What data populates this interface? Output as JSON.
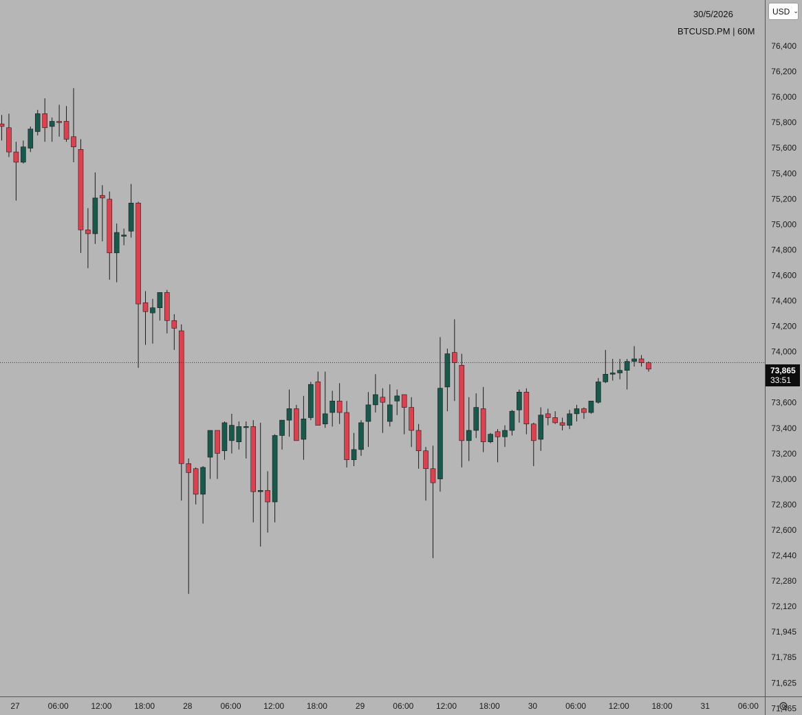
{
  "header": {
    "date": "30/5/2026",
    "symbol_line": "BTCUSD.PM | 60M"
  },
  "currency_select": {
    "value": "USD"
  },
  "price_badge": {
    "price": "73,865",
    "countdown": "33:51"
  },
  "colors": {
    "background": "#b6b6b6",
    "up": "#17594a",
    "down": "#e0404e",
    "wick": "#1a1a1a",
    "axis_line": "#555555"
  },
  "icons": {
    "settings": "gear-icon",
    "dropdown": "chevron-down-icon"
  },
  "chart_data": {
    "type": "candlestick",
    "interval": "60M",
    "x_tick_labels": [
      "27",
      "06:00",
      "12:00",
      "18:00",
      "28",
      "06:00",
      "12:00",
      "18:00",
      "29",
      "06:00",
      "12:00",
      "18:00",
      "30",
      "06:00",
      "12:00",
      "18:00",
      "31",
      "06:00"
    ],
    "y_tick_labels": [
      "76,400",
      "76,200",
      "76,000",
      "75,800",
      "75,600",
      "75,400",
      "75,200",
      "75,000",
      "74,800",
      "74,600",
      "74,400",
      "74,200",
      "74,000",
      "73,800",
      "73,600",
      "73,400",
      "73,200",
      "73,000",
      "72,800",
      "72,600",
      "72,440",
      "72,280",
      "72,120",
      "71,945",
      "71,785",
      "71,625",
      "71,465"
    ],
    "last_price": 73865,
    "candles": [
      {
        "o": 75780,
        "h": 75850,
        "l": 75650,
        "c": 75760
      },
      {
        "o": 75750,
        "h": 75860,
        "l": 75520,
        "c": 75560
      },
      {
        "o": 75560,
        "h": 75640,
        "l": 75180,
        "c": 75480
      },
      {
        "o": 75480,
        "h": 75650,
        "l": 75470,
        "c": 75600
      },
      {
        "o": 75590,
        "h": 75760,
        "l": 75560,
        "c": 75740
      },
      {
        "o": 75720,
        "h": 75890,
        "l": 75690,
        "c": 75860
      },
      {
        "o": 75860,
        "h": 75980,
        "l": 75640,
        "c": 75750
      },
      {
        "o": 75760,
        "h": 75830,
        "l": 75640,
        "c": 75800
      },
      {
        "o": 75800,
        "h": 75930,
        "l": 75680,
        "c": 75790
      },
      {
        "o": 75800,
        "h": 75920,
        "l": 75640,
        "c": 75660
      },
      {
        "o": 75680,
        "h": 76060,
        "l": 75480,
        "c": 75600
      },
      {
        "o": 75580,
        "h": 75660,
        "l": 74770,
        "c": 74950
      },
      {
        "o": 74950,
        "h": 75120,
        "l": 74650,
        "c": 74920
      },
      {
        "o": 74920,
        "h": 75400,
        "l": 74840,
        "c": 75200
      },
      {
        "o": 75220,
        "h": 75300,
        "l": 74860,
        "c": 75200
      },
      {
        "o": 75190,
        "h": 75250,
        "l": 74560,
        "c": 74770
      },
      {
        "o": 74770,
        "h": 75000,
        "l": 74540,
        "c": 74930
      },
      {
        "o": 74900,
        "h": 74960,
        "l": 74830,
        "c": 74910
      },
      {
        "o": 74940,
        "h": 75310,
        "l": 74890,
        "c": 75160
      },
      {
        "o": 75160,
        "h": 75170,
        "l": 73870,
        "c": 74370
      },
      {
        "o": 74380,
        "h": 74470,
        "l": 74050,
        "c": 74310
      },
      {
        "o": 74300,
        "h": 74410,
        "l": 74060,
        "c": 74340
      },
      {
        "o": 74340,
        "h": 74460,
        "l": 74240,
        "c": 74460
      },
      {
        "o": 74460,
        "h": 74480,
        "l": 74140,
        "c": 74240
      },
      {
        "o": 74240,
        "h": 74290,
        "l": 74010,
        "c": 74180
      },
      {
        "o": 74160,
        "h": 74210,
        "l": 72830,
        "c": 73120
      },
      {
        "o": 73120,
        "h": 73160,
        "l": 72100,
        "c": 73050
      },
      {
        "o": 73080,
        "h": 73090,
        "l": 72800,
        "c": 72880
      },
      {
        "o": 72880,
        "h": 73100,
        "l": 72650,
        "c": 73090
      },
      {
        "o": 73170,
        "h": 73380,
        "l": 73000,
        "c": 73380
      },
      {
        "o": 73380,
        "h": 73380,
        "l": 73000,
        "c": 73200
      },
      {
        "o": 73220,
        "h": 73450,
        "l": 73150,
        "c": 73440
      },
      {
        "o": 73300,
        "h": 73510,
        "l": 73200,
        "c": 73420
      },
      {
        "o": 73290,
        "h": 73450,
        "l": 73230,
        "c": 73410
      },
      {
        "o": 73410,
        "h": 73450,
        "l": 73160,
        "c": 73410
      },
      {
        "o": 73410,
        "h": 73460,
        "l": 72660,
        "c": 72900
      },
      {
        "o": 72900,
        "h": 73440,
        "l": 72470,
        "c": 72910
      },
      {
        "o": 72910,
        "h": 73060,
        "l": 72580,
        "c": 72820
      },
      {
        "o": 72820,
        "h": 73350,
        "l": 72660,
        "c": 73340
      },
      {
        "o": 73340,
        "h": 73430,
        "l": 73230,
        "c": 73460
      },
      {
        "o": 73460,
        "h": 73700,
        "l": 73330,
        "c": 73550
      },
      {
        "o": 73550,
        "h": 73580,
        "l": 73300,
        "c": 73300
      },
      {
        "o": 73310,
        "h": 73650,
        "l": 73150,
        "c": 73470
      },
      {
        "o": 73480,
        "h": 73760,
        "l": 73460,
        "c": 73740
      },
      {
        "o": 73760,
        "h": 73840,
        "l": 73420,
        "c": 73420
      },
      {
        "o": 73430,
        "h": 73840,
        "l": 73400,
        "c": 73510
      },
      {
        "o": 73520,
        "h": 73690,
        "l": 73410,
        "c": 73610
      },
      {
        "o": 73610,
        "h": 73750,
        "l": 73430,
        "c": 73520
      },
      {
        "o": 73520,
        "h": 73610,
        "l": 73090,
        "c": 73150
      },
      {
        "o": 73150,
        "h": 73360,
        "l": 73100,
        "c": 73230
      },
      {
        "o": 73230,
        "h": 73460,
        "l": 73180,
        "c": 73440
      },
      {
        "o": 73450,
        "h": 73680,
        "l": 73250,
        "c": 73580
      },
      {
        "o": 73580,
        "h": 73820,
        "l": 73520,
        "c": 73660
      },
      {
        "o": 73640,
        "h": 73710,
        "l": 73360,
        "c": 73600
      },
      {
        "o": 73450,
        "h": 73740,
        "l": 73410,
        "c": 73580
      },
      {
        "o": 73610,
        "h": 73700,
        "l": 73500,
        "c": 73650
      },
      {
        "o": 73660,
        "h": 73650,
        "l": 73350,
        "c": 73560
      },
      {
        "o": 73560,
        "h": 73640,
        "l": 73250,
        "c": 73380
      },
      {
        "o": 73380,
        "h": 73430,
        "l": 73080,
        "c": 73220
      },
      {
        "o": 73220,
        "h": 73250,
        "l": 72830,
        "c": 73080
      },
      {
        "o": 73080,
        "h": 73260,
        "l": 72380,
        "c": 72970
      },
      {
        "o": 73000,
        "h": 74110,
        "l": 72900,
        "c": 73710
      },
      {
        "o": 73720,
        "h": 74020,
        "l": 73530,
        "c": 73980
      },
      {
        "o": 73990,
        "h": 74250,
        "l": 73610,
        "c": 73910
      },
      {
        "o": 73890,
        "h": 73980,
        "l": 73090,
        "c": 73300
      },
      {
        "o": 73300,
        "h": 73640,
        "l": 73140,
        "c": 73380
      },
      {
        "o": 73380,
        "h": 73670,
        "l": 73320,
        "c": 73560
      },
      {
        "o": 73550,
        "h": 73720,
        "l": 73210,
        "c": 73290
      },
      {
        "o": 73290,
        "h": 73360,
        "l": 73280,
        "c": 73350
      },
      {
        "o": 73370,
        "h": 73390,
        "l": 73130,
        "c": 73330
      },
      {
        "o": 73330,
        "h": 73420,
        "l": 73250,
        "c": 73380
      },
      {
        "o": 73380,
        "h": 73540,
        "l": 73340,
        "c": 73530
      },
      {
        "o": 73540,
        "h": 73700,
        "l": 73440,
        "c": 73680
      },
      {
        "o": 73680,
        "h": 73710,
        "l": 73350,
        "c": 73430
      },
      {
        "o": 73430,
        "h": 73440,
        "l": 73100,
        "c": 73300
      },
      {
        "o": 73310,
        "h": 73560,
        "l": 73220,
        "c": 73500
      },
      {
        "o": 73510,
        "h": 73550,
        "l": 73420,
        "c": 73480
      },
      {
        "o": 73480,
        "h": 73530,
        "l": 73430,
        "c": 73440
      },
      {
        "o": 73440,
        "h": 73480,
        "l": 73380,
        "c": 73420
      },
      {
        "o": 73420,
        "h": 73540,
        "l": 73390,
        "c": 73510
      },
      {
        "o": 73510,
        "h": 73580,
        "l": 73450,
        "c": 73550
      },
      {
        "o": 73550,
        "h": 73560,
        "l": 73470,
        "c": 73520
      },
      {
        "o": 73520,
        "h": 73610,
        "l": 73510,
        "c": 73610
      },
      {
        "o": 73600,
        "h": 73790,
        "l": 73590,
        "c": 73760
      },
      {
        "o": 73760,
        "h": 74010,
        "l": 73750,
        "c": 73820
      },
      {
        "o": 73820,
        "h": 73940,
        "l": 73770,
        "c": 73830
      },
      {
        "o": 73830,
        "h": 73940,
        "l": 73780,
        "c": 73850
      },
      {
        "o": 73850,
        "h": 73940,
        "l": 73700,
        "c": 73920
      },
      {
        "o": 73920,
        "h": 74040,
        "l": 73880,
        "c": 73940
      },
      {
        "o": 73940,
        "h": 73970,
        "l": 73880,
        "c": 73910
      },
      {
        "o": 73910,
        "h": 73920,
        "l": 73840,
        "c": 73860
      }
    ]
  }
}
